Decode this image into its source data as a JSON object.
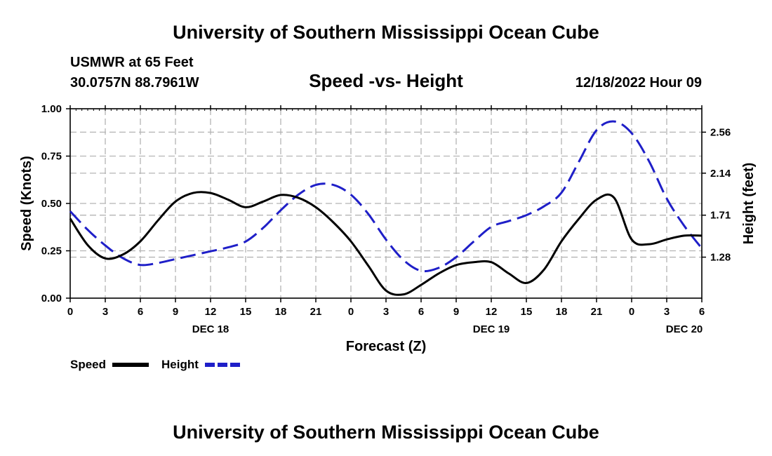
{
  "page": {
    "title": "University of Southern Mississippi Ocean Cube",
    "bottom_title": "University of Southern Mississippi Ocean Cube",
    "station": "USMWR at 65 Feet",
    "coords": "30.0757N  88.7961W",
    "subtitle": "Speed -vs- Height",
    "date": "12/18/2022 Hour 09"
  },
  "chart_data": {
    "type": "line",
    "title": "Speed -vs- Height",
    "xlabel": "Forecast (Z)",
    "ylabel": "Speed (Knots)",
    "y2label": "Height (feet)",
    "grid": true,
    "xlim": [
      0,
      54
    ],
    "ylim": [
      0,
      1
    ],
    "y2lim": [
      0.86,
      2.8
    ],
    "x_ticks": [
      0,
      3,
      6,
      9,
      12,
      15,
      18,
      21,
      24,
      27,
      30,
      33,
      36,
      39,
      42,
      45,
      48,
      51,
      54
    ],
    "x_tick_labels": [
      "0",
      "3",
      "6",
      "9",
      "12",
      "15",
      "18",
      "21",
      "0",
      "3",
      "6",
      "9",
      "12",
      "15",
      "18",
      "21",
      "0",
      "3",
      "6"
    ],
    "y_ticks": [
      0,
      0.25,
      0.5,
      0.75,
      1.0
    ],
    "y_tick_labels": [
      "0.00",
      "0.25",
      "0.50",
      "0.75",
      "1.00"
    ],
    "y2_ticks": [
      1.28,
      1.71,
      2.14,
      2.56
    ],
    "y2_tick_labels": [
      "1.28",
      "1.71",
      "2.14",
      "2.56"
    ],
    "date_labels": [
      {
        "x": 12,
        "label": "DEC 18"
      },
      {
        "x": 36,
        "label": "DEC 19"
      },
      {
        "x": 52.5,
        "label": "DEC 20"
      }
    ],
    "series": [
      {
        "name": "Speed",
        "axis": "left",
        "color": "#000000",
        "dash": "solid",
        "x": [
          0,
          1.5,
          3,
          4.5,
          6,
          7.5,
          9,
          10.5,
          12,
          13.5,
          15,
          16.5,
          18,
          19.5,
          21,
          22.5,
          24,
          25.5,
          27,
          28.5,
          30,
          31.5,
          33,
          34.5,
          36,
          37.5,
          39,
          40.5,
          42,
          43.5,
          45,
          46.5,
          48,
          49.5,
          51,
          52.5,
          54
        ],
        "y": [
          0.42,
          0.28,
          0.21,
          0.23,
          0.3,
          0.41,
          0.51,
          0.555,
          0.555,
          0.52,
          0.48,
          0.51,
          0.545,
          0.53,
          0.48,
          0.4,
          0.3,
          0.17,
          0.04,
          0.02,
          0.07,
          0.13,
          0.175,
          0.19,
          0.19,
          0.13,
          0.08,
          0.15,
          0.3,
          0.42,
          0.52,
          0.53,
          0.31,
          0.285,
          0.31,
          0.33,
          0.33
        ]
      },
      {
        "name": "Height",
        "axis": "right",
        "color": "#1f1fc8",
        "dash": "dashed",
        "x": [
          0,
          1.5,
          3,
          4.5,
          6,
          7.5,
          9,
          10.5,
          12,
          13.5,
          15,
          16.5,
          18,
          19.5,
          21,
          22.5,
          24,
          25.5,
          27,
          28.5,
          30,
          31.5,
          33,
          34.5,
          36,
          37.5,
          39,
          40.5,
          42,
          43.5,
          45,
          46.5,
          48,
          49.5,
          51,
          52.5,
          54
        ],
        "y": [
          1.75,
          1.56,
          1.4,
          1.27,
          1.2,
          1.22,
          1.26,
          1.3,
          1.34,
          1.38,
          1.44,
          1.58,
          1.76,
          1.92,
          2.02,
          2.02,
          1.92,
          1.72,
          1.46,
          1.25,
          1.14,
          1.17,
          1.28,
          1.44,
          1.59,
          1.65,
          1.71,
          1.8,
          1.94,
          2.26,
          2.58,
          2.67,
          2.55,
          2.26,
          1.88,
          1.6,
          1.37
        ]
      }
    ],
    "legend": {
      "position": "bottom-left",
      "items": [
        "Speed",
        "Height"
      ]
    }
  }
}
